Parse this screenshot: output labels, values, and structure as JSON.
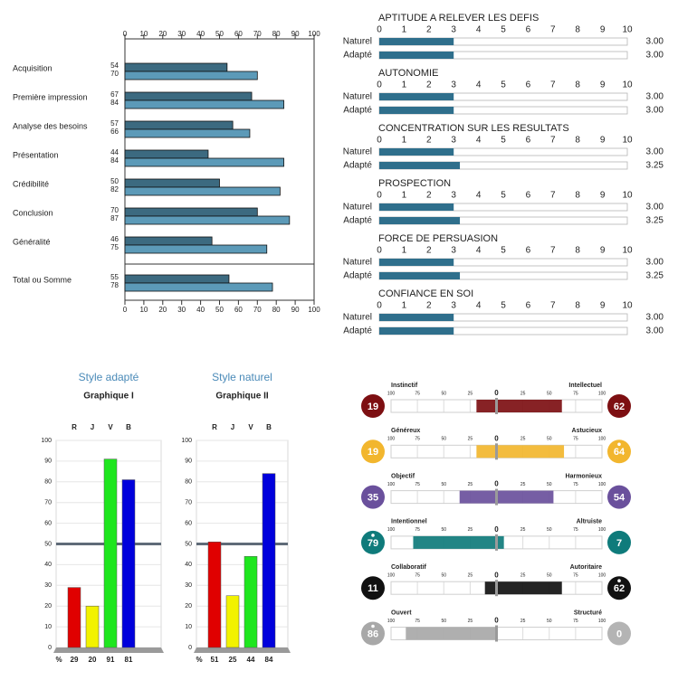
{
  "chart_data": [
    {
      "type": "hbar",
      "categories": [
        "Acquisition",
        "Première impression",
        "Analyse des besoins",
        "Présentation",
        "Crédibilité",
        "Conclusion",
        "Généralité",
        "Total ou Somme"
      ],
      "series": [
        {
          "color": "#3c6a80",
          "values": [
            54,
            67,
            57,
            44,
            50,
            70,
            46,
            55
          ]
        },
        {
          "color": "#5c9ab8",
          "values": [
            70,
            84,
            66,
            84,
            82,
            87,
            75,
            78
          ]
        }
      ],
      "xlim": [
        0,
        100
      ],
      "xticks": [
        0,
        10,
        20,
        30,
        40,
        50,
        60,
        70,
        80,
        90,
        100
      ]
    },
    {
      "type": "scale",
      "xlim": [
        0,
        10
      ],
      "xticks": [
        0,
        1,
        2,
        3,
        4,
        5,
        6,
        7,
        8,
        9,
        10
      ],
      "color": "#2f6f8c",
      "panels": [
        {
          "title": "APTITUDE A RELEVER LES DEFIS",
          "categories": [
            "Naturel",
            "Adapté"
          ],
          "values": [
            3,
            3
          ],
          "value_labels": [
            "3.00",
            "3.00"
          ]
        },
        {
          "title": "AUTONOMIE",
          "categories": [
            "Naturel",
            "Adapté"
          ],
          "values": [
            3,
            3
          ],
          "value_labels": [
            "3.00",
            "3.00"
          ]
        },
        {
          "title": "CONCENTRATION SUR LES RESULTATS",
          "categories": [
            "Naturel",
            "Adapté"
          ],
          "values": [
            3,
            3.25
          ],
          "value_labels": [
            "3.00",
            "3.25"
          ]
        },
        {
          "title": "PROSPECTION",
          "categories": [
            "Naturel",
            "Adapté"
          ],
          "values": [
            3,
            3.25
          ],
          "value_labels": [
            "3.00",
            "3.25"
          ]
        },
        {
          "title": "FORCE DE PERSUASION",
          "categories": [
            "Naturel",
            "Adapté"
          ],
          "values": [
            3,
            3.25
          ],
          "value_labels": [
            "3.00",
            "3.25"
          ]
        },
        {
          "title": "CONFIANCE EN SOI",
          "categories": [
            "Naturel",
            "Adapté"
          ],
          "values": [
            3,
            3
          ],
          "value_labels": [
            "3.00",
            "3.00"
          ]
        }
      ]
    },
    {
      "type": "bar",
      "title": "Style adapté",
      "subtitle": "Graphique I",
      "categories": [
        "R",
        "J",
        "V",
        "B"
      ],
      "values": [
        29,
        20,
        91,
        81
      ],
      "colors": [
        "#e00000",
        "#f2f200",
        "#1ee61e",
        "#0000dc"
      ],
      "unit_label": "%",
      "ylim": [
        0,
        100
      ],
      "yticks": [
        0,
        10,
        20,
        30,
        40,
        50,
        60,
        70,
        80,
        90,
        100
      ],
      "reference_line": 50,
      "grid": true
    },
    {
      "type": "bar",
      "title": "Style naturel",
      "subtitle": "Graphique II",
      "categories": [
        "R",
        "J",
        "V",
        "B"
      ],
      "values": [
        51,
        25,
        44,
        84
      ],
      "colors": [
        "#e00000",
        "#f2f200",
        "#1ee61e",
        "#0000dc"
      ],
      "unit_label": "%",
      "ylim": [
        0,
        100
      ],
      "yticks": [
        0,
        10,
        20,
        30,
        40,
        50,
        60,
        70,
        80,
        90,
        100
      ],
      "reference_line": 50,
      "grid": true
    },
    {
      "type": "bipolar",
      "xlim": [
        -100,
        100
      ],
      "xticks": [
        {
          "value": -100,
          "label": "100"
        },
        {
          "value": -75,
          "label": "75"
        },
        {
          "value": -50,
          "label": "50"
        },
        {
          "value": -25,
          "label": "25"
        },
        0,
        25,
        50,
        75,
        100
      ],
      "rows": [
        {
          "left_label": "Instinctif",
          "right_label": "Intellectuel",
          "left_value": 19,
          "right_value": 62,
          "color": "#7d0f12",
          "right_color": "#7d0f12"
        },
        {
          "left_label": "Généreux",
          "right_label": "Astucieux",
          "left_value": 19,
          "right_value": 64,
          "color": "#f2b62e",
          "right_color": "#f2b62e"
        },
        {
          "left_label": "Objectif",
          "right_label": "Harmonieux",
          "left_value": 35,
          "right_value": 54,
          "color": "#6a509c",
          "right_color": "#6a509c"
        },
        {
          "left_label": "Intentionnel",
          "right_label": "Altruiste",
          "left_value": 79,
          "right_value": 7,
          "color": "#0f7b7b",
          "right_color": "#0f7b7b"
        },
        {
          "left_label": "Collaboratif",
          "right_label": "Autoritaire",
          "left_value": 11,
          "right_value": 62,
          "color": "#111111",
          "right_color": "#111111"
        },
        {
          "left_label": "Ouvert",
          "right_label": "Structuré",
          "left_value": 86,
          "right_value": 0,
          "color": "#a8a8a8",
          "right_color": "#b4b4b4"
        }
      ]
    }
  ]
}
